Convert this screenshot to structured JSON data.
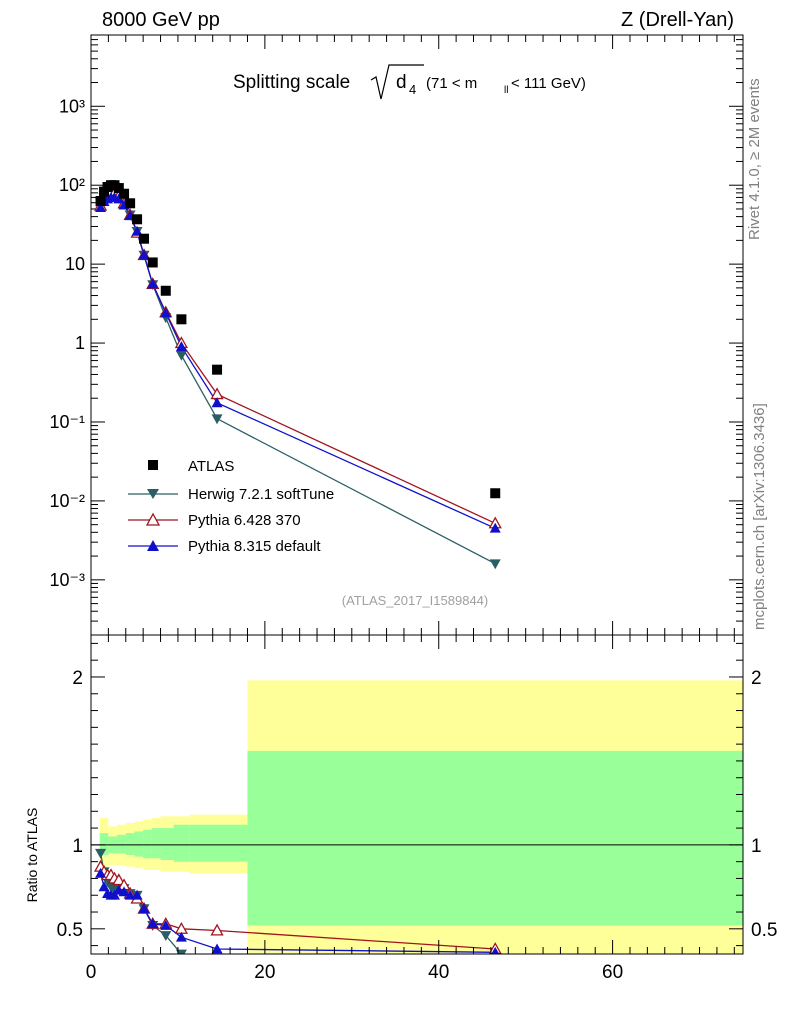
{
  "header": {
    "left": "8000 GeV pp",
    "right": "Z (Drell-Yan)"
  },
  "side_labels": {
    "rivet": "Rivet 4.1.0, ≥ 2M events",
    "mcplots": "mcplots.cern.ch [arXiv:1306.3436]"
  },
  "chart_data": [
    {
      "panel": "main",
      "type": "scatter",
      "title_main": "Splitting scale",
      "title_sqrt": "d",
      "title_sqrt_sub": "4",
      "title_range_prefix": "(71 < m",
      "title_range_sub": "ll",
      "title_range_suffix": " < 111 GeV)",
      "analysis_tag": "(ATLAS_2017_I1589844)",
      "yscale": "log",
      "xlim": [
        0,
        75
      ],
      "ylim": [
        0.0002,
        8000
      ],
      "y_tick_labels": [
        "10⁻³",
        "10⁻²",
        "10⁻¹",
        "1",
        "10",
        "10²",
        "10³"
      ],
      "series": [
        {
          "name": "ATLAS",
          "color": "#000000",
          "marker": "square",
          "x": [
            1.1,
            1.5,
            1.9,
            2.3,
            2.7,
            3.2,
            3.8,
            4.5,
            5.3,
            6.1,
            7.1,
            8.6,
            10.4,
            14.5,
            46.5
          ],
          "y": [
            63,
            83,
            95,
            100,
            100,
            92,
            78,
            59,
            37,
            21,
            10.5,
            4.6,
            2.0,
            0.46,
            0.0125
          ]
        },
        {
          "name": "Herwig 7.2.1 softTune",
          "color": "#2a5e64",
          "marker": "triangle-down",
          "x": [
            1.1,
            1.5,
            1.9,
            2.3,
            2.7,
            3.2,
            3.8,
            4.5,
            5.3,
            6.1,
            7.1,
            8.6,
            10.4,
            14.5,
            46.5
          ],
          "y": [
            60,
            70,
            74,
            75,
            73,
            68,
            58,
            42,
            26,
            13,
            5.5,
            2.1,
            0.7,
            0.11,
            0.0016
          ]
        },
        {
          "name": "Pythia 6.428 370",
          "color": "#a0141e",
          "marker": "triangle-up-open",
          "x": [
            1.1,
            1.5,
            1.9,
            2.3,
            2.7,
            3.2,
            3.8,
            4.5,
            5.3,
            6.1,
            7.1,
            8.6,
            10.4,
            14.5,
            46.5
          ],
          "y": [
            55,
            70,
            78,
            82,
            80,
            73,
            59,
            42,
            25,
            13,
            5.6,
            2.45,
            1.0,
            0.225,
            0.0052
          ]
        },
        {
          "name": "Pythia 8.315 default",
          "color": "#1010cc",
          "marker": "triangle-up",
          "x": [
            1.1,
            1.5,
            1.9,
            2.3,
            2.7,
            3.2,
            3.8,
            4.5,
            5.3,
            6.1,
            7.1,
            8.6,
            10.4,
            14.5,
            46.5
          ],
          "y": [
            52,
            62,
            67,
            70,
            70,
            67,
            56,
            41,
            26,
            13,
            5.6,
            2.4,
            0.9,
            0.175,
            0.0045
          ]
        }
      ]
    },
    {
      "panel": "ratio",
      "type": "scatter",
      "ylabel": "Ratio to ATLAS",
      "xlim": [
        0,
        75
      ],
      "ylim": [
        0.35,
        2.25
      ],
      "x_tick_labels": [
        "0",
        "20",
        "40",
        "60"
      ],
      "y_tick_labels": [
        "0.5",
        "1",
        "2"
      ],
      "bands": {
        "edges": [
          1.0,
          2.0,
          3.0,
          4.0,
          5.0,
          6.0,
          7.0,
          8.0,
          9.5,
          11.3,
          18.0,
          75.0
        ],
        "outer_lo": [
          0.86,
          0.88,
          0.88,
          0.87,
          0.86,
          0.85,
          0.85,
          0.84,
          0.84,
          0.83,
          0.34
        ],
        "outer_hi": [
          1.16,
          1.11,
          1.12,
          1.13,
          1.14,
          1.15,
          1.16,
          1.17,
          1.17,
          1.18,
          1.98
        ],
        "inner_lo": [
          0.94,
          0.95,
          0.95,
          0.94,
          0.93,
          0.92,
          0.92,
          0.91,
          0.9,
          0.9,
          0.52
        ],
        "inner_hi": [
          1.07,
          1.05,
          1.06,
          1.07,
          1.08,
          1.09,
          1.1,
          1.1,
          1.12,
          1.12,
          1.56
        ],
        "outer_color": "#ffff99",
        "inner_color": "#99ff99"
      },
      "series": [
        {
          "name": "Herwig 7.2.1 softTune",
          "color": "#2a5e64",
          "marker": "triangle-down",
          "x": [
            1.1,
            1.5,
            1.9,
            2.3,
            2.7,
            3.2,
            3.8,
            4.5,
            5.3,
            6.1,
            7.1,
            8.6,
            10.4
          ],
          "y": [
            0.95,
            0.84,
            0.78,
            0.75,
            0.73,
            0.74,
            0.74,
            0.71,
            0.7,
            0.62,
            0.52,
            0.46,
            0.35
          ]
        },
        {
          "name": "Pythia 6.428 370",
          "color": "#a0141e",
          "marker": "triangle-up-open",
          "x": [
            1.1,
            1.5,
            1.9,
            2.3,
            2.7,
            3.2,
            3.8,
            4.5,
            5.3,
            6.1,
            7.1,
            8.6,
            10.4,
            14.5,
            46.5
          ],
          "y": [
            0.87,
            0.84,
            0.82,
            0.82,
            0.8,
            0.79,
            0.76,
            0.71,
            0.68,
            0.62,
            0.53,
            0.53,
            0.5,
            0.49,
            0.38
          ]
        },
        {
          "name": "Pythia 8.315 default",
          "color": "#1010cc",
          "marker": "triangle-up",
          "x": [
            1.1,
            1.5,
            1.9,
            2.3,
            2.7,
            3.2,
            3.8,
            4.5,
            5.3,
            6.1,
            7.1,
            8.6,
            10.4,
            14.5,
            46.5
          ],
          "y": [
            0.83,
            0.75,
            0.71,
            0.7,
            0.7,
            0.73,
            0.72,
            0.7,
            0.7,
            0.62,
            0.53,
            0.52,
            0.45,
            0.38,
            0.36
          ]
        }
      ]
    }
  ]
}
